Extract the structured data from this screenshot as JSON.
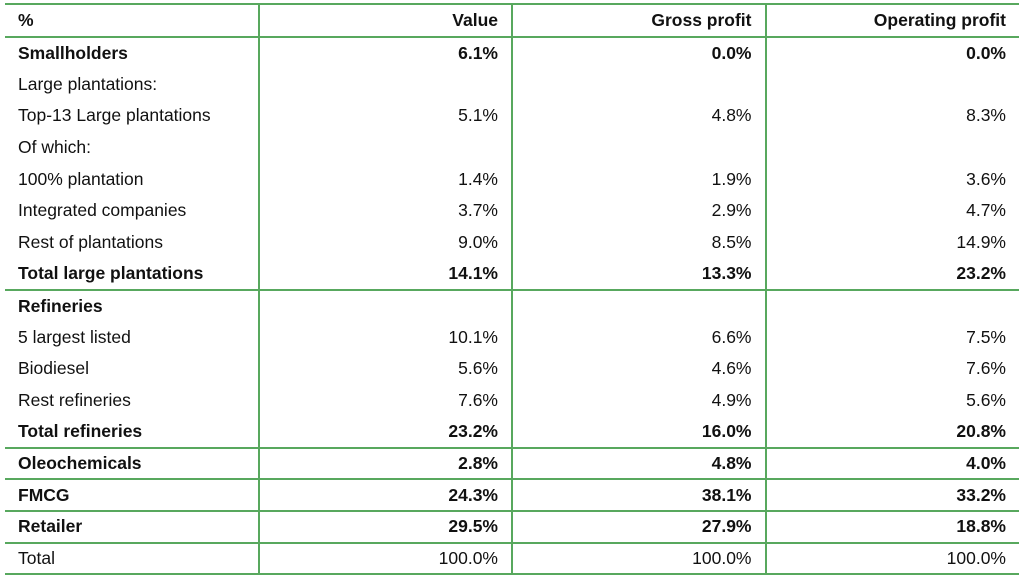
{
  "colors": {
    "border_green": "#58a85e",
    "text": "#111111",
    "background": "#ffffff"
  },
  "chart_data": {
    "type": "table",
    "title": "",
    "columns": [
      "%",
      "Value",
      "Gross profit",
      "Operating profit"
    ],
    "rows": [
      {
        "cells": [
          "Smallholders",
          "6.1%",
          "0.0%",
          "0.0%"
        ],
        "bold": true,
        "section_end": false
      },
      {
        "cells": [
          "Large plantations:",
          "",
          "",
          ""
        ],
        "bold": false,
        "section_end": false
      },
      {
        "cells": [
          "Top-13 Large plantations",
          "5.1%",
          "4.8%",
          "8.3%"
        ],
        "bold": false,
        "section_end": false
      },
      {
        "cells": [
          "Of which:",
          "",
          "",
          ""
        ],
        "bold": false,
        "section_end": false
      },
      {
        "cells": [
          "100% plantation",
          "1.4%",
          "1.9%",
          "3.6%"
        ],
        "bold": false,
        "section_end": false
      },
      {
        "cells": [
          "Integrated companies",
          "3.7%",
          "2.9%",
          "4.7%"
        ],
        "bold": false,
        "section_end": false
      },
      {
        "cells": [
          "Rest of plantations",
          "9.0%",
          "8.5%",
          "14.9%"
        ],
        "bold": false,
        "section_end": false
      },
      {
        "cells": [
          "Total large plantations",
          "14.1%",
          "13.3%",
          "23.2%"
        ],
        "bold": true,
        "section_end": true
      },
      {
        "cells": [
          "Refineries",
          "",
          "",
          ""
        ],
        "bold": true,
        "section_end": false
      },
      {
        "cells": [
          "5 largest listed",
          "10.1%",
          "6.6%",
          "7.5%"
        ],
        "bold": false,
        "section_end": false
      },
      {
        "cells": [
          "Biodiesel",
          "5.6%",
          "4.6%",
          "7.6%"
        ],
        "bold": false,
        "section_end": false
      },
      {
        "cells": [
          "Rest refineries",
          "7.6%",
          "4.9%",
          "5.6%"
        ],
        "bold": false,
        "section_end": false
      },
      {
        "cells": [
          "Total refineries",
          "23.2%",
          "16.0%",
          "20.8%"
        ],
        "bold": true,
        "section_end": true
      },
      {
        "cells": [
          "Oleochemicals",
          "2.8%",
          "4.8%",
          "4.0%"
        ],
        "bold": true,
        "section_end": true
      },
      {
        "cells": [
          "FMCG",
          "24.3%",
          "38.1%",
          "33.2%"
        ],
        "bold": true,
        "section_end": true
      },
      {
        "cells": [
          "Retailer",
          "29.5%",
          "27.9%",
          "18.8%"
        ],
        "bold": true,
        "section_end": true
      },
      {
        "cells": [
          "Total",
          "100.0%",
          "100.0%",
          "100.0%"
        ],
        "bold": false,
        "section_end": false
      }
    ]
  }
}
